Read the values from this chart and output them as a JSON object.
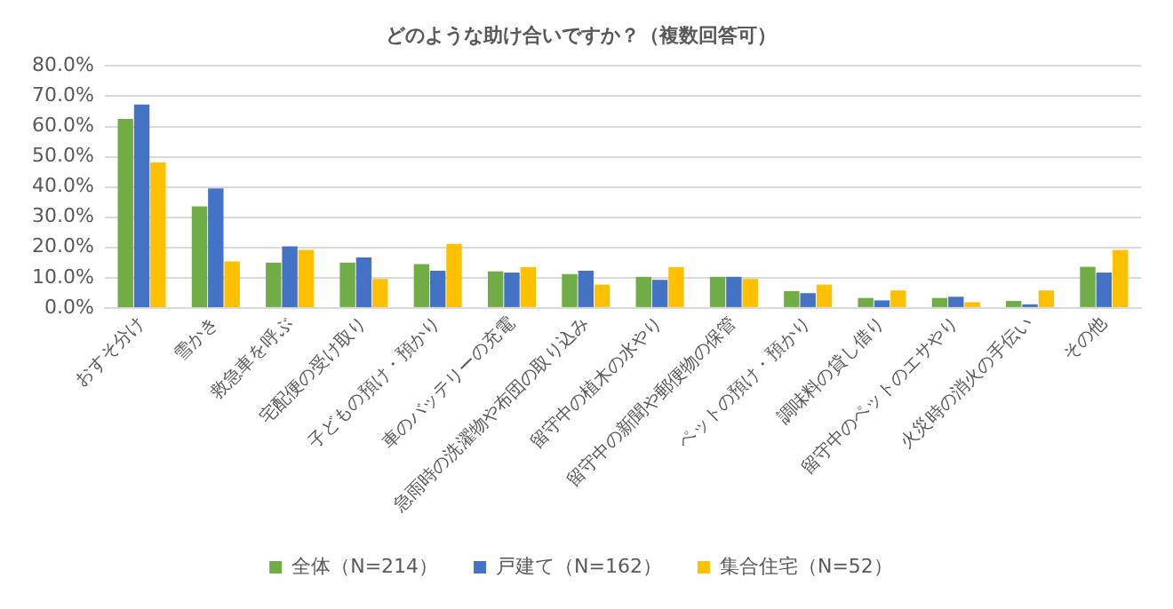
{
  "chart_data": {
    "type": "bar",
    "title": "どのような助け合いですか？（複数回答可）",
    "categories": [
      "おすそ分け",
      "雪かき",
      "救急車を呼ぶ",
      "宅配便の受け取り",
      "子どもの預け・預かり",
      "車のバッテリーの充電",
      "急雨時の洗濯物や布団の取り込み",
      "留守中の植木の水やり",
      "留守中の新聞や郵便物の保管",
      "ペットの預け・預かり",
      "調味料の貸し借り",
      "留守中のペットのエサやり",
      "火災時の消火の手伝い",
      "その他"
    ],
    "series": [
      {
        "name": "全体（N=214）",
        "color": "#70ad47",
        "values": [
          62.5,
          33.6,
          15.0,
          15.0,
          14.5,
          12.1,
          11.2,
          10.3,
          10.3,
          5.6,
          3.3,
          3.3,
          2.3,
          13.6
        ]
      },
      {
        "name": "戸建て（N=162）",
        "color": "#4472c4",
        "values": [
          67.3,
          39.5,
          20.4,
          16.7,
          12.3,
          11.7,
          12.3,
          9.3,
          10.3,
          4.9,
          2.5,
          3.7,
          1.2,
          11.7
        ]
      },
      {
        "name": "集合住宅（N=52）",
        "color": "#ffc000",
        "values": [
          48.1,
          15.4,
          19.2,
          9.6,
          21.2,
          13.5,
          7.7,
          13.5,
          9.6,
          7.7,
          5.8,
          1.9,
          5.8,
          19.2
        ]
      }
    ],
    "ylim": [
      0,
      80
    ],
    "yticks": [
      {
        "value": 0,
        "label": "0.0%"
      },
      {
        "value": 10,
        "label": "10.0%"
      },
      {
        "value": 20,
        "label": "20.0%"
      },
      {
        "value": 30,
        "label": "30.0%"
      },
      {
        "value": 40,
        "label": "40.0%"
      },
      {
        "value": 50,
        "label": "50.0%"
      },
      {
        "value": 60,
        "label": "60.0%"
      },
      {
        "value": 70,
        "label": "70.0%"
      },
      {
        "value": 80,
        "label": "80.0%"
      }
    ],
    "grid": "y",
    "legend": "bottom"
  }
}
